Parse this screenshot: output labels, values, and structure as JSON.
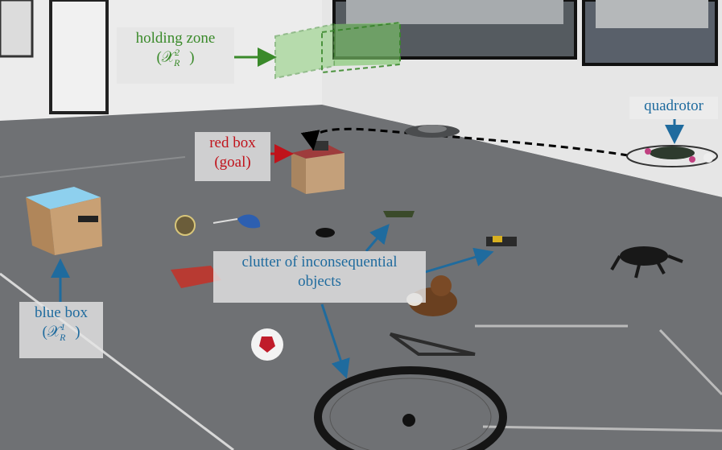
{
  "labels": {
    "holding_zone": {
      "line1": "holding zone",
      "line2": "(𝒳",
      "sup": "2",
      "sub": "R",
      "close": " )"
    },
    "red_box": {
      "line1": "red box",
      "line2": "(goal)"
    },
    "blue_box": {
      "line1": "blue box",
      "line2": "(𝒳",
      "sup": "1",
      "sub": "R",
      "close": " )"
    },
    "clutter": {
      "line1": "clutter of inconsequential",
      "line2": "objects"
    },
    "quadrotor": {
      "line1": "quadrotor"
    }
  },
  "colors": {
    "holding_zone": "#3a8a2a",
    "red_box": "#c0131b",
    "annotation_blue": "#1f6b9e",
    "path": "#000000"
  }
}
